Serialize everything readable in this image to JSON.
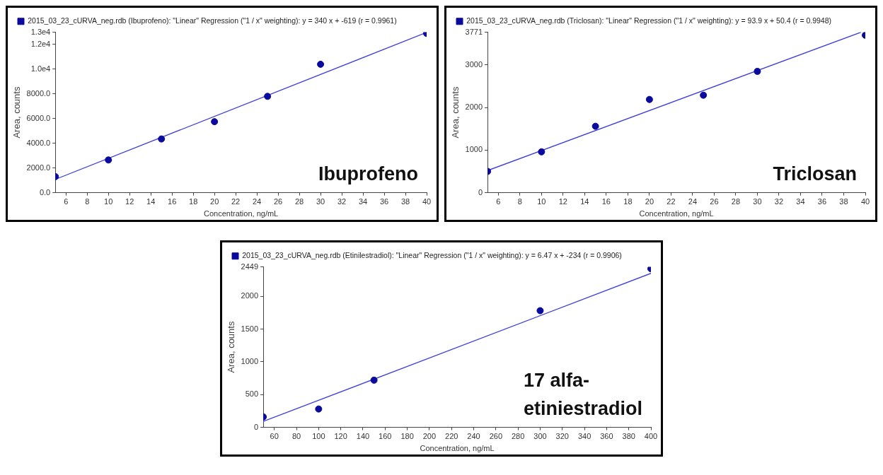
{
  "chart_data": [
    {
      "type": "scatter",
      "legend": "top left",
      "grid": false,
      "marker": "circle",
      "xlabel": "Concentration, ng/mL",
      "ylabel": "Area, counts",
      "annotations": [
        "Ibuprofeno"
      ],
      "xlim": [
        5,
        40
      ],
      "xticks": [
        6,
        8,
        10,
        12,
        14,
        16,
        18,
        20,
        22,
        24,
        26,
        28,
        30,
        32,
        34,
        36,
        38,
        40
      ],
      "ylim": [
        0,
        13000
      ],
      "yticks": [
        {
          "value": 0,
          "label": "0.0"
        },
        {
          "value": 2000,
          "label": "2000.0"
        },
        {
          "value": 4000,
          "label": "4000.0"
        },
        {
          "value": 6000,
          "label": "6000.0"
        },
        {
          "value": 8000,
          "label": "8000.0"
        },
        {
          "value": 10000,
          "label": "1.0e4"
        },
        {
          "value": 12000,
          "label": "1.2e4"
        },
        {
          "value": 13000,
          "label": "1.3e4"
        }
      ],
      "series": [
        {
          "name": "2015_03_23_cURVA_neg.rdb (Ibuprofeno): \"Linear\" Regression (\"1 / x\" weighting): y = 340 x + -619 (r = 0.9961)",
          "type": "scatter",
          "color": "#0a0a9c",
          "x": [
            5,
            10,
            15,
            20,
            25,
            30,
            40
          ],
          "values": [
            1300,
            2650,
            4350,
            5750,
            7800,
            10400,
            12900
          ]
        },
        {
          "type": "line",
          "color": "#3c3cdc",
          "marker": "none",
          "line_style": "solid",
          "x": [
            5,
            40
          ],
          "values": [
            1080,
            12980
          ]
        }
      ]
    },
    {
      "type": "scatter",
      "legend": "top left",
      "grid": false,
      "marker": "circle",
      "xlabel": "Concentration, ng/mL",
      "ylabel": "Area, counts",
      "annotations": [
        "Triclosan"
      ],
      "xlim": [
        5,
        40
      ],
      "xticks": [
        6,
        8,
        10,
        12,
        14,
        16,
        18,
        20,
        22,
        24,
        26,
        28,
        30,
        32,
        34,
        36,
        38,
        40
      ],
      "ylim": [
        0,
        3771
      ],
      "yticks": [
        0,
        1000,
        2000,
        3000,
        3771
      ],
      "series": [
        {
          "name": "2015_03_23_cURVA_neg.rdb (Triclosan): \"Linear\" Regression (\"1 / x\" weighting): y = 93.9 x + 50.4 (r = 0.9948)",
          "type": "scatter",
          "color": "#0a0a9c",
          "x": [
            5,
            10,
            15,
            20,
            25,
            30,
            40
          ],
          "values": [
            500,
            960,
            1560,
            2190,
            2290,
            2850,
            3700
          ]
        },
        {
          "type": "line",
          "color": "#3c3cdc",
          "marker": "none",
          "line_style": "solid",
          "x": [
            5,
            39.6
          ],
          "values": [
            520,
            3770
          ]
        }
      ]
    },
    {
      "type": "scatter",
      "legend": "top left",
      "grid": false,
      "marker": "circle",
      "xlabel": "Concentration, ng/mL",
      "ylabel": "Area, counts",
      "annotations": [
        "17 alfa-\netiniestradiol"
      ],
      "xlim": [
        50,
        400
      ],
      "xticks": [
        60,
        80,
        100,
        120,
        140,
        160,
        180,
        200,
        220,
        240,
        260,
        280,
        300,
        320,
        340,
        360,
        380,
        400
      ],
      "ylim": [
        0,
        2449
      ],
      "yticks": [
        0,
        500,
        1000,
        1500,
        2000,
        2449
      ],
      "series": [
        {
          "name": "2015_03_23_cURVA_neg.rdb (Etinilestradiol): \"Linear\" Regression (\"1 / x\" weighting): y = 6.47 x + -234 (r = 0.9906)",
          "type": "scatter",
          "color": "#0a0a9c",
          "x": [
            50,
            100,
            150,
            300,
            400
          ],
          "values": [
            160,
            280,
            720,
            1780,
            2420
          ]
        },
        {
          "type": "line",
          "color": "#3c3cdc",
          "marker": "none",
          "line_style": "solid",
          "x": [
            50,
            400
          ],
          "values": [
            90,
            2350
          ]
        }
      ]
    }
  ]
}
